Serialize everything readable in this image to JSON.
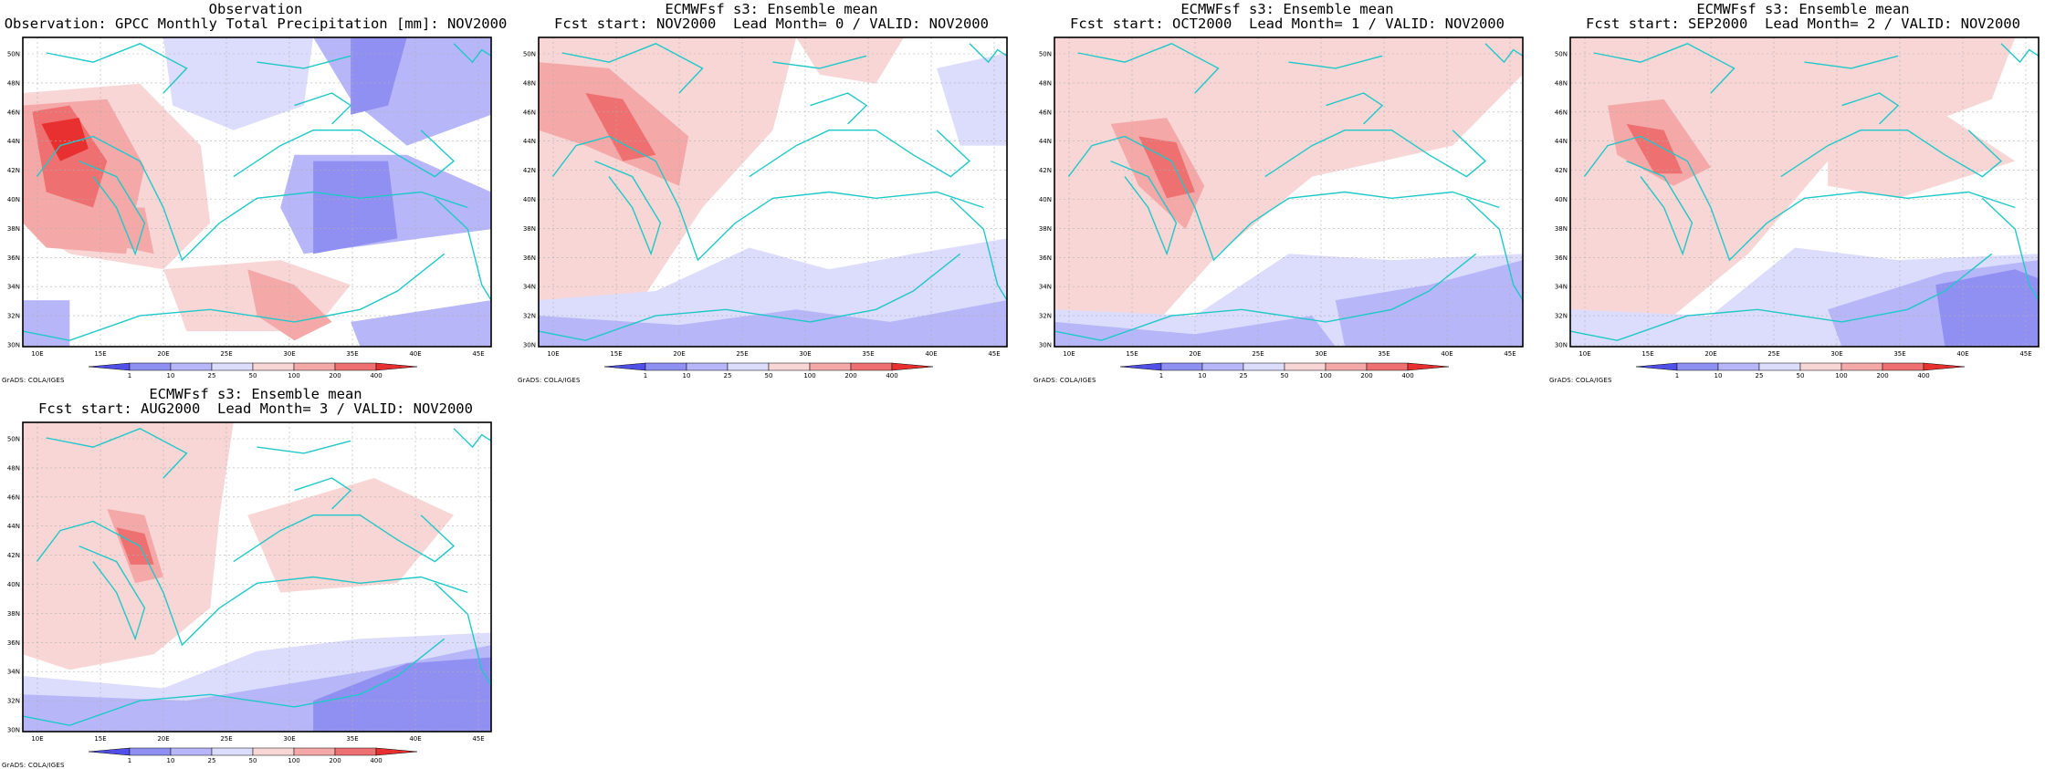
{
  "colors": {
    "ocean_coast": "#20c8c8",
    "red1": "#f8d6d6",
    "red2": "#f4a8a8",
    "red3": "#ee7070",
    "red4": "#e83030",
    "blue1": "#dcdcfc",
    "blue2": "#b6b6f8",
    "blue3": "#9090f2",
    "blue4": "#5050e8"
  },
  "panels": [
    {
      "line1": "Observation",
      "line2": "Observation: GPCC Monthly Total Precipitation [mm]: NOV2000",
      "watermark": "GrADS: COLA/IGES"
    },
    {
      "line1": "ECMWFsf s3: Ensemble mean",
      "line2": "Fcst start: NOV2000  Lead Month= 0 / VALID: NOV2000",
      "watermark": "GrADS: COLA/IGES"
    },
    {
      "line1": "ECMWFsf s3: Ensemble mean",
      "line2": "Fcst start: OCT2000  Lead Month= 1 / VALID: NOV2000",
      "watermark": "GrADS: COLA/IGES"
    },
    {
      "line1": "ECMWFsf s3: Ensemble mean",
      "line2": "Fcst start: SEP2000  Lead Month= 2 / VALID: NOV2000",
      "watermark": "GrADS: COLA/IGES"
    },
    {
      "line1": "ECMWFsf s3: Ensemble mean",
      "line2": "Fcst start: AUG2000  Lead Month= 3 / VALID: NOV2000",
      "watermark": "GrADS: COLA/IGES"
    }
  ],
  "axes": {
    "lon_labels": [
      "10E",
      "15E",
      "20E",
      "25E",
      "30E",
      "35E",
      "40E",
      "45E"
    ],
    "lat_labels": [
      "30N",
      "32N",
      "34N",
      "36N",
      "38N",
      "40N",
      "42N",
      "44N",
      "46N",
      "48N",
      "50N"
    ]
  },
  "colorbar": {
    "labels": [
      "1",
      "10",
      "25",
      "50",
      "100",
      "200",
      "400"
    ],
    "colors": [
      "#5050e8",
      "#9090f2",
      "#b6b6f8",
      "#dcdcfc",
      "#f8d6d6",
      "#f4a8a8",
      "#ee7070",
      "#e83030"
    ]
  }
}
